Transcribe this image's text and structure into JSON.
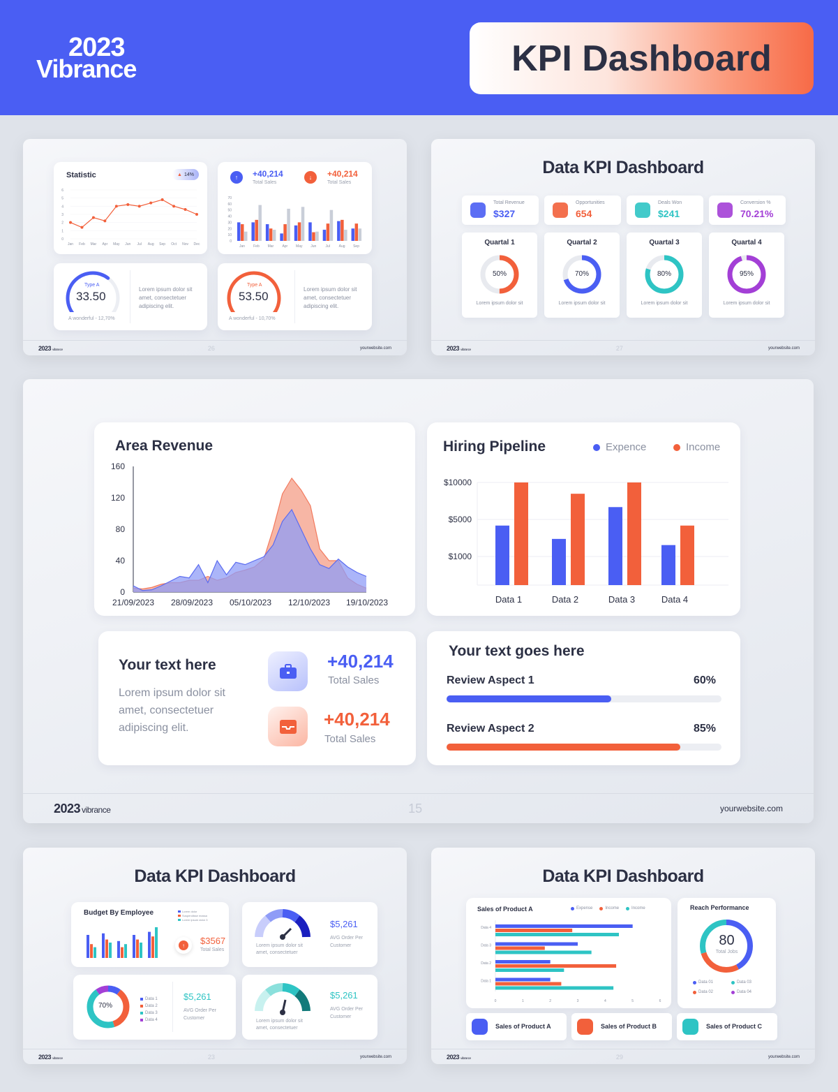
{
  "header": {
    "brand_year": "2023",
    "brand_name": "Vibrance",
    "title": "KPI Dashboard"
  },
  "slide26": {
    "statistic_title": "Statistic",
    "statistic_badge": "14%",
    "line_chart": {
      "type": "line",
      "categories": [
        "Jan",
        "Feb",
        "Mar",
        "Apr",
        "May",
        "Jun",
        "Jul",
        "Aug",
        "Sep",
        "Oct",
        "Nov",
        "Dec"
      ],
      "values": [
        2,
        1.4,
        2.6,
        2.2,
        4,
        4.2,
        4,
        4.4,
        4.8,
        4,
        3.6,
        3
      ],
      "ylim": [
        0,
        6
      ],
      "yticks": [
        "6",
        "5",
        "4",
        "3",
        "2",
        "1",
        "0"
      ],
      "color": "#f2603b"
    },
    "kpi_up": {
      "value": "+40,214",
      "label": "Total Sales"
    },
    "kpi_down": {
      "value": "+40,214",
      "label": "Total Sales"
    },
    "bar_chart": {
      "type": "bar",
      "categories": [
        "Jan",
        "Feb",
        "Mar",
        "Apr",
        "May",
        "Jun",
        "Jul",
        "Aug",
        "Sep"
      ],
      "yticks": [
        "70",
        "60",
        "50",
        "40",
        "30",
        "20",
        "10",
        "0"
      ],
      "ylim": [
        0,
        70
      ],
      "series": [
        {
          "values": [
            30,
            30,
            27,
            12,
            25,
            30,
            18,
            32,
            20
          ],
          "color": "#4a5ef3"
        },
        {
          "values": [
            27,
            34,
            20,
            27,
            30,
            14,
            28,
            34,
            28
          ],
          "color": "#f2603b"
        },
        {
          "values": [
            15,
            58,
            18,
            52,
            55,
            15,
            50,
            18,
            20
          ],
          "color": "#c9ced8"
        }
      ]
    },
    "gauge_a": {
      "type": "Type A",
      "value": "33.50",
      "note": "A wonderful - 12,70%",
      "text": "Lorem ipsum dolor sit amet, consectetuer adipiscing elit.",
      "pct": 0.35,
      "color": "#4a5ef3"
    },
    "gauge_b": {
      "type": "Type A",
      "value": "53.50",
      "note": "A wonderful - 10,70%",
      "text": "Lorem ipsum dolor sit amet, consectetuer adipiscing elit.",
      "pct": 0.55,
      "color": "#f2603b"
    },
    "footer": {
      "year": "2023",
      "brand": "vibrance",
      "page": "26",
      "url": "yourwebsite.com"
    }
  },
  "slide27": {
    "title": "Data KPI Dashboard",
    "stats": [
      {
        "label": "Total Revenue",
        "value": "$327",
        "color": "#4a5ef3"
      },
      {
        "label": "Opportunities",
        "value": "654",
        "color": "#f2603b"
      },
      {
        "label": "Deals Won",
        "value": "$241",
        "color": "#2ec4c4"
      },
      {
        "label": "Conversion %",
        "value": "70.21%",
        "color": "#a33fd6"
      }
    ],
    "quartals": [
      {
        "title": "Quartal 1",
        "pct": "50%",
        "frac": 0.5,
        "color": "#f2603b",
        "text": "Lorem ipsum dolor sit"
      },
      {
        "title": "Quartal 2",
        "pct": "70%",
        "frac": 0.7,
        "color": "#4a5ef3",
        "text": "Lorem ipsum dolor sit"
      },
      {
        "title": "Quartal 3",
        "pct": "80%",
        "frac": 0.8,
        "color": "#2ec4c4",
        "text": "Lorem ipsum dolor sit"
      },
      {
        "title": "Quartal 4",
        "pct": "95%",
        "frac": 0.95,
        "color": "#a33fd6",
        "text": "Lorem ipsum dolor sit"
      }
    ],
    "footer": {
      "year": "2023",
      "brand": "vibrance",
      "page": "27",
      "url": "yourwebsite.com"
    }
  },
  "slide15": {
    "area": {
      "title": "Area Revenue",
      "type": "area",
      "yticks": [
        "160",
        "120",
        "80",
        "40",
        "0"
      ],
      "xticks": [
        "21/09/2023",
        "28/09/2023",
        "05/10/2023",
        "12/10/2023",
        "19/10/2023"
      ],
      "ylim": [
        0,
        160
      ],
      "series": [
        {
          "color": "#5b6cf0",
          "values": [
            8,
            2,
            3,
            8,
            14,
            20,
            18,
            35,
            12,
            40,
            22,
            38,
            35,
            40,
            45,
            60,
            90,
            105,
            80,
            55,
            35,
            30,
            42,
            32,
            25,
            20
          ]
        },
        {
          "color": "#f27a5e",
          "values": [
            5,
            4,
            6,
            10,
            12,
            12,
            15,
            15,
            20,
            15,
            18,
            25,
            28,
            32,
            42,
            80,
            125,
            145,
            130,
            110,
            55,
            40,
            40,
            18,
            10,
            5
          ]
        }
      ]
    },
    "hiring": {
      "title": "Hiring Pipeline",
      "type": "bar",
      "legend": [
        "Expence",
        "Income"
      ],
      "yticks": [
        "$10000",
        "$5000",
        "$1000"
      ],
      "categories": [
        "Data 1",
        "Data 2",
        "Data 3",
        "Data 4"
      ],
      "series": [
        {
          "name": "Expence",
          "color": "#4a5ef3",
          "values": [
            0.58,
            0.45,
            0.76,
            0.39
          ]
        },
        {
          "name": "Income",
          "color": "#f2603b",
          "values": [
            1.0,
            0.89,
            1.0,
            0.58
          ]
        }
      ]
    },
    "text_card": {
      "heading": "Your text here",
      "body": "Lorem ipsum dolor sit amet, consectetuer adipiscing elit.",
      "kpis": [
        {
          "value": "+40,214",
          "label": "Total Sales",
          "color": "#4a5ef3"
        },
        {
          "value": "+40,214",
          "label": "Total Sales",
          "color": "#f2603b"
        }
      ]
    },
    "review": {
      "heading": "Your text goes here",
      "items": [
        {
          "label": "Review Aspect 1",
          "pct": "60%",
          "frac": 0.6,
          "color": "#4a5ef3"
        },
        {
          "label": "Review Aspect 2",
          "pct": "85%",
          "frac": 0.85,
          "color": "#f2603b"
        }
      ]
    },
    "footer": {
      "year": "2023",
      "brand": "vibrance",
      "page": "15",
      "url": "yourwebsite.com"
    }
  },
  "slide23": {
    "title": "Data KPI Dashboard",
    "budget": {
      "title": "Budget By Employee",
      "legend": [
        "Lorem dolor",
        "Suspendisse massa",
        "Lorem ipsum dolor 3"
      ],
      "value": "$3567",
      "label": "Total Sales",
      "series": [
        {
          "color": "#4a5ef3",
          "values": [
            0.75,
            0.8,
            0.55,
            0.75,
            0.85
          ]
        },
        {
          "color": "#f2603b",
          "values": [
            0.45,
            0.6,
            0.35,
            0.6,
            0.7
          ]
        },
        {
          "color": "#2ec4c4",
          "values": [
            0.35,
            0.5,
            0.45,
            0.5,
            1.0
          ]
        }
      ]
    },
    "gauge1": {
      "value": "$5,261",
      "label": "AVG Order Per Customer",
      "text": "Lorem ipsum dolor sit amet, consectetuer"
    },
    "donut": {
      "pct": "70%",
      "legend": [
        "Data 1",
        "Data 2",
        "Data 3",
        "Data 4"
      ],
      "colors": [
        "#4a5ef3",
        "#f2603b",
        "#2ec4c4",
        "#a33fd6"
      ],
      "values": [
        0.1,
        0.35,
        0.45,
        0.1
      ]
    },
    "donut_kpi": {
      "value": "$5,261",
      "label": "AVG Order Per Customer"
    },
    "gauge2": {
      "value": "$5,261",
      "label": "AVG Order Per Customer",
      "text": "Lorem ipsum dolor sit amet, consectetuer"
    },
    "footer": {
      "year": "2023",
      "brand": "vibrance",
      "page": "23",
      "url": "yourwebsite.com"
    }
  },
  "slide29": {
    "title": "Data KPI Dashboard",
    "hbar": {
      "title": "Sales of Product A",
      "legend": [
        "Expense",
        "Income",
        "Income"
      ],
      "colors": [
        "#4a5ef3",
        "#f2603b",
        "#2ec4c4"
      ],
      "categories": [
        "Data 4",
        "Data 3",
        "Data 2",
        "Data 1"
      ],
      "xticks": [
        "0",
        "1",
        "2",
        "3",
        "4",
        "5",
        "6"
      ],
      "xlim": [
        0,
        6
      ],
      "series": [
        {
          "values": [
            5.0,
            3.0,
            2.0,
            2.0
          ]
        },
        {
          "values": [
            2.8,
            1.8,
            4.4,
            2.4
          ]
        },
        {
          "values": [
            4.5,
            3.5,
            2.5,
            4.3
          ]
        }
      ]
    },
    "reach": {
      "title": "Reach Performance",
      "value": "80",
      "label": "Total Jobs",
      "legend": [
        "Data 01",
        "Data 03",
        "Data 02",
        "Data 04"
      ],
      "legend_colors": [
        "#4a5ef3",
        "#2ec4c4",
        "#f2603b",
        "#a33fd6"
      ]
    },
    "products": [
      {
        "label": "Sales of Product A",
        "color": "#4a5ef3"
      },
      {
        "label": "Sales of Product B",
        "color": "#f2603b"
      },
      {
        "label": "Sales of Product C",
        "color": "#2ec4c4"
      }
    ],
    "footer": {
      "year": "2023",
      "brand": "vibrance",
      "page": "29",
      "url": "yourwebsite.com"
    }
  }
}
